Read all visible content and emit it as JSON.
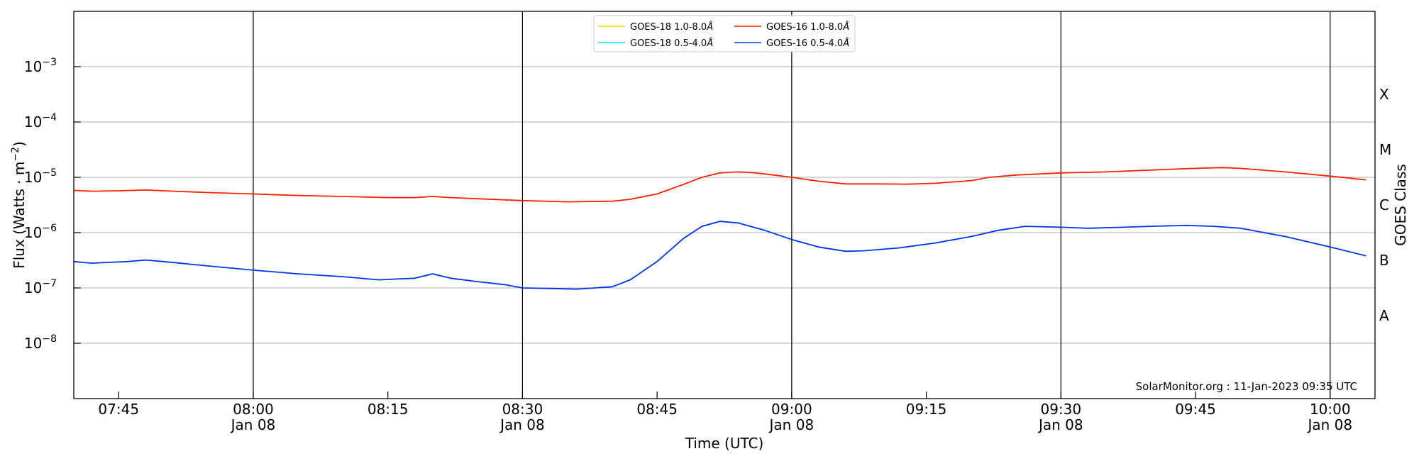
{
  "chart_data": {
    "type": "line",
    "title": "",
    "xlabel": "Time (UTC)",
    "ylabel": "Flux (Watts · m",
    "ylabel_exponent": "−2",
    "ylabel_suffix": ")",
    "y2label": "GOES Class",
    "y_scale": "log",
    "ylim": [
      1e-09,
      0.01
    ],
    "xlim": [
      "07:40",
      "10:05"
    ],
    "yticks": [
      {
        "value": 1e-08,
        "base": "10",
        "exp": "−8"
      },
      {
        "value": 1e-07,
        "base": "10",
        "exp": "−7"
      },
      {
        "value": 1e-06,
        "base": "10",
        "exp": "−6"
      },
      {
        "value": 1e-05,
        "base": "10",
        "exp": "−5"
      },
      {
        "value": 0.0001,
        "base": "10",
        "exp": "−4"
      },
      {
        "value": 0.001,
        "base": "10",
        "exp": "−3"
      }
    ],
    "xticks": [
      {
        "time": "07:45",
        "label": "07:45",
        "sub": ""
      },
      {
        "time": "08:00",
        "label": "08:00",
        "sub": "Jan 08"
      },
      {
        "time": "08:15",
        "label": "08:15",
        "sub": ""
      },
      {
        "time": "08:30",
        "label": "08:30",
        "sub": "Jan 08"
      },
      {
        "time": "08:45",
        "label": "08:45",
        "sub": ""
      },
      {
        "time": "09:00",
        "label": "09:00",
        "sub": "Jan 08"
      },
      {
        "time": "09:15",
        "label": "09:15",
        "sub": ""
      },
      {
        "time": "09:30",
        "label": "09:30",
        "sub": "Jan 08"
      },
      {
        "time": "09:45",
        "label": "09:45",
        "sub": ""
      },
      {
        "time": "10:00",
        "label": "10:00",
        "sub": "Jan 08"
      }
    ],
    "vlines": [
      "08:00",
      "08:30",
      "09:00",
      "09:30",
      "10:00"
    ],
    "goes_classes": [
      {
        "label": "A",
        "value": 3.16e-08
      },
      {
        "label": "B",
        "value": 3.16e-07
      },
      {
        "label": "C",
        "value": 3.16e-06
      },
      {
        "label": "M",
        "value": 3.16e-05
      },
      {
        "label": "X",
        "value": 0.000316
      }
    ],
    "grid": "horizontal at decades",
    "legend_position": "top-center",
    "legend": [
      {
        "name": "GOES-18 1.0-8.0",
        "unit": "Å",
        "color": "#FFD700",
        "column": 0
      },
      {
        "name": "GOES-18 0.5-4.0",
        "unit": "Å",
        "color": "#00E5EE",
        "column": 0
      },
      {
        "name": "GOES-16 1.0-8.0",
        "unit": "Å",
        "color": "#FF2000",
        "column": 1
      },
      {
        "name": "GOES-16 0.5-4.0",
        "unit": "Å",
        "color": "#0033EE",
        "column": 1
      }
    ],
    "series": [
      {
        "name": "GOES-16 1.0-8.0",
        "color": "#FF2000",
        "points": [
          [
            "07:40",
            5.8e-06
          ],
          [
            "07:42",
            5.6e-06
          ],
          [
            "07:45",
            5.7e-06
          ],
          [
            "07:48",
            5.9e-06
          ],
          [
            "07:50",
            5.7e-06
          ],
          [
            "07:55",
            5.3e-06
          ],
          [
            "08:00",
            5e-06
          ],
          [
            "08:05",
            4.7e-06
          ],
          [
            "08:10",
            4.5e-06
          ],
          [
            "08:15",
            4.3e-06
          ],
          [
            "08:18",
            4.3e-06
          ],
          [
            "08:20",
            4.5e-06
          ],
          [
            "08:22",
            4.3e-06
          ],
          [
            "08:25",
            4.1e-06
          ],
          [
            "08:30",
            3.8e-06
          ],
          [
            "08:35",
            3.6e-06
          ],
          [
            "08:40",
            3.7e-06
          ],
          [
            "08:42",
            4e-06
          ],
          [
            "08:45",
            5e-06
          ],
          [
            "08:48",
            7.5e-06
          ],
          [
            "08:50",
            1e-05
          ],
          [
            "08:52",
            1.2e-05
          ],
          [
            "08:54",
            1.25e-05
          ],
          [
            "08:56",
            1.2e-05
          ],
          [
            "08:58",
            1.1e-05
          ],
          [
            "09:00",
            1e-05
          ],
          [
            "09:03",
            8.5e-06
          ],
          [
            "09:06",
            7.6e-06
          ],
          [
            "09:10",
            7.6e-06
          ],
          [
            "09:13",
            7.5e-06
          ],
          [
            "09:16",
            7.8e-06
          ],
          [
            "09:20",
            8.7e-06
          ],
          [
            "09:22",
            1e-05
          ],
          [
            "09:25",
            1.1e-05
          ],
          [
            "09:30",
            1.2e-05
          ],
          [
            "09:35",
            1.25e-05
          ],
          [
            "09:40",
            1.35e-05
          ],
          [
            "09:45",
            1.45e-05
          ],
          [
            "09:48",
            1.5e-05
          ],
          [
            "09:50",
            1.45e-05
          ],
          [
            "09:55",
            1.25e-05
          ],
          [
            "10:00",
            1.05e-05
          ],
          [
            "10:04",
            9e-06
          ]
        ]
      },
      {
        "name": "GOES-16 0.5-4.0",
        "color": "#0033EE",
        "points": [
          [
            "07:40",
            3e-07
          ],
          [
            "07:42",
            2.8e-07
          ],
          [
            "07:44",
            2.9e-07
          ],
          [
            "07:46",
            3e-07
          ],
          [
            "07:48",
            3.2e-07
          ],
          [
            "07:50",
            3e-07
          ],
          [
            "07:55",
            2.5e-07
          ],
          [
            "08:00",
            2.1e-07
          ],
          [
            "08:05",
            1.8e-07
          ],
          [
            "08:10",
            1.6e-07
          ],
          [
            "08:14",
            1.4e-07
          ],
          [
            "08:16",
            1.45e-07
          ],
          [
            "08:18",
            1.5e-07
          ],
          [
            "08:20",
            1.8e-07
          ],
          [
            "08:22",
            1.5e-07
          ],
          [
            "08:25",
            1.3e-07
          ],
          [
            "08:28",
            1.15e-07
          ],
          [
            "08:30",
            1e-07
          ],
          [
            "08:33",
            9.8e-08
          ],
          [
            "08:36",
            9.5e-08
          ],
          [
            "08:38",
            1e-07
          ],
          [
            "08:40",
            1.05e-07
          ],
          [
            "08:42",
            1.4e-07
          ],
          [
            "08:45",
            3e-07
          ],
          [
            "08:48",
            8e-07
          ],
          [
            "08:50",
            1.3e-06
          ],
          [
            "08:52",
            1.6e-06
          ],
          [
            "08:54",
            1.5e-06
          ],
          [
            "08:57",
            1.1e-06
          ],
          [
            "09:00",
            7.5e-07
          ],
          [
            "09:03",
            5.5e-07
          ],
          [
            "09:06",
            4.6e-07
          ],
          [
            "09:08",
            4.7e-07
          ],
          [
            "09:12",
            5.3e-07
          ],
          [
            "09:16",
            6.5e-07
          ],
          [
            "09:20",
            8.5e-07
          ],
          [
            "09:23",
            1.1e-06
          ],
          [
            "09:26",
            1.3e-06
          ],
          [
            "09:30",
            1.25e-06
          ],
          [
            "09:33",
            1.2e-06
          ],
          [
            "09:37",
            1.25e-06
          ],
          [
            "09:40",
            1.3e-06
          ],
          [
            "09:44",
            1.35e-06
          ],
          [
            "09:47",
            1.3e-06
          ],
          [
            "09:50",
            1.2e-06
          ],
          [
            "09:55",
            8.5e-07
          ],
          [
            "10:00",
            5.5e-07
          ],
          [
            "10:04",
            3.8e-07
          ]
        ]
      }
    ],
    "annotation": "SolarMonitor.org : 11-Jan-2023 09:35 UTC"
  }
}
